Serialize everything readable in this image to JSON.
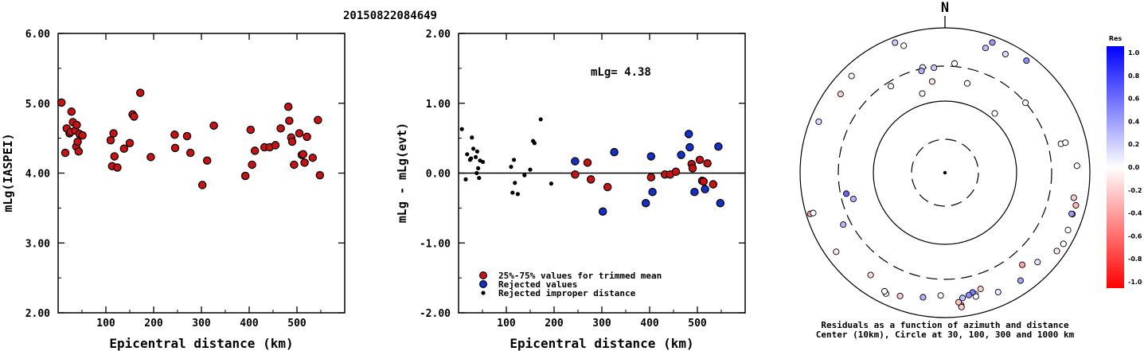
{
  "title": "20150822084649",
  "chart_data": [
    {
      "type": "scatter",
      "ylabel": "mLg(IASPEI)",
      "xlabel": "Epicentral distance (km)",
      "xlim": [
        0,
        600
      ],
      "ylim": [
        2.0,
        6.0
      ],
      "x_ticks": [
        "100",
        "200",
        "300",
        "400",
        "500"
      ],
      "y_ticks": [
        "2.00",
        "3.00",
        "4.00",
        "5.00",
        "6.00"
      ],
      "series": [
        {
          "color": "#d01010",
          "points": [
            [
              7,
              5.01
            ],
            [
              15,
              4.29
            ],
            [
              18,
              4.64
            ],
            [
              24,
              4.57
            ],
            [
              26,
              4.59
            ],
            [
              28,
              4.88
            ],
            [
              31,
              4.73
            ],
            [
              36,
              4.61
            ],
            [
              38,
              4.38
            ],
            [
              39,
              4.69
            ],
            [
              41,
              4.45
            ],
            [
              43,
              4.31
            ],
            [
              45,
              4.56
            ],
            [
              51,
              4.54
            ],
            [
              110,
              4.47
            ],
            [
              113,
              4.1
            ],
            [
              116,
              4.57
            ],
            [
              118,
              4.24
            ],
            [
              124,
              4.08
            ],
            [
              138,
              4.35
            ],
            [
              150,
              4.43
            ],
            [
              156,
              4.84
            ],
            [
              159,
              4.81
            ],
            [
              172,
              5.15
            ],
            [
              194,
              4.23
            ],
            [
              244,
              4.55
            ],
            [
              245,
              4.36
            ],
            [
              270,
              4.53
            ],
            [
              277,
              4.29
            ],
            [
              302,
              3.83
            ],
            [
              312,
              4.18
            ],
            [
              326,
              4.68
            ],
            [
              392,
              3.96
            ],
            [
              403,
              4.62
            ],
            [
              406,
              4.12
            ],
            [
              412,
              4.32
            ],
            [
              432,
              4.37
            ],
            [
              443,
              4.37
            ],
            [
              455,
              4.4
            ],
            [
              466,
              4.64
            ],
            [
              482,
              4.95
            ],
            [
              484,
              4.75
            ],
            [
              488,
              4.51
            ],
            [
              490,
              4.45
            ],
            [
              494,
              4.12
            ],
            [
              505,
              4.57
            ],
            [
              510,
              4.26
            ],
            [
              513,
              4.27
            ],
            [
              516,
              4.15
            ],
            [
              521,
              4.52
            ],
            [
              533,
              4.22
            ],
            [
              544,
              4.76
            ],
            [
              548,
              3.97
            ]
          ]
        }
      ]
    },
    {
      "type": "scatter",
      "ylabel": "mLg - mLg(evt)",
      "xlabel": "Epicentral distance (km)",
      "xlim": [
        0,
        600
      ],
      "ylim": [
        -2.0,
        2.0
      ],
      "x_ticks": [
        "100",
        "200",
        "300",
        "400",
        "500"
      ],
      "y_ticks": [
        "-2.00",
        "-1.00",
        "0.00",
        "1.00",
        "2.00"
      ],
      "annotation": "mLg= 4.38",
      "reference_line": 0.0,
      "legend": [
        {
          "label": "25%-75% values for trimmed mean",
          "color": "#d01010"
        },
        {
          "label": "Rejected values",
          "color": "#1030d0"
        },
        {
          "label": "Rejected improper distance",
          "color": "#000000"
        }
      ],
      "series": [
        {
          "name": "25%-75% values for trimmed mean",
          "color": "#d01010",
          "points": [
            [
              270,
              0.15
            ],
            [
              277,
              -0.09
            ],
            [
              312,
              -0.2
            ],
            [
              403,
              -0.06
            ],
            [
              432,
              -0.02
            ],
            [
              443,
              -0.02
            ],
            [
              455,
              0.02
            ],
            [
              488,
              0.13
            ],
            [
              490,
              0.07
            ],
            [
              505,
              0.19
            ],
            [
              510,
              -0.11
            ],
            [
              513,
              -0.12
            ],
            [
              521,
              0.14
            ],
            [
              533,
              -0.16
            ],
            [
              244,
              -0.02
            ]
          ]
        },
        {
          "name": "Rejected values",
          "color": "#1030d0",
          "points": [
            [
              244,
              0.17
            ],
            [
              302,
              -0.55
            ],
            [
              326,
              0.3
            ],
            [
              392,
              -0.43
            ],
            [
              403,
              0.24
            ],
            [
              406,
              -0.27
            ],
            [
              466,
              0.26
            ],
            [
              482,
              0.56
            ],
            [
              484,
              0.37
            ],
            [
              494,
              -0.27
            ],
            [
              516,
              -0.23
            ],
            [
              544,
              0.38
            ],
            [
              548,
              -0.43
            ]
          ]
        },
        {
          "name": "Rejected improper distance",
          "color": "#000000",
          "points": [
            [
              7,
              0.63
            ],
            [
              15,
              -0.09
            ],
            [
              18,
              0.27
            ],
            [
              24,
              0.19
            ],
            [
              26,
              0.21
            ],
            [
              28,
              0.51
            ],
            [
              31,
              0.35
            ],
            [
              36,
              0.23
            ],
            [
              38,
              0.0
            ],
            [
              39,
              0.31
            ],
            [
              41,
              0.07
            ],
            [
              43,
              -0.07
            ],
            [
              45,
              0.18
            ],
            [
              51,
              0.16
            ],
            [
              110,
              0.09
            ],
            [
              113,
              -0.28
            ],
            [
              116,
              0.19
            ],
            [
              118,
              -0.14
            ],
            [
              124,
              -0.3
            ],
            [
              138,
              -0.03
            ],
            [
              150,
              0.05
            ],
            [
              156,
              0.46
            ],
            [
              159,
              0.43
            ],
            [
              172,
              0.77
            ],
            [
              194,
              -0.15
            ]
          ]
        }
      ]
    },
    {
      "type": "scatter",
      "title": "N",
      "caption_line1": "Residuals as a function of azimuth and distance",
      "caption_line2": "Center (10km), Circle at 30, 100, 300 and 1000 km",
      "colorbar_title": "Res",
      "colorbar_ticks": [
        "1.0",
        "0.8",
        "0.6",
        "0.4",
        "0.2",
        "0.0",
        "-0.2",
        "-0.4",
        "-0.6",
        "-0.8",
        "-1.0"
      ],
      "rings_km": [
        30,
        100,
        300,
        1000
      ],
      "points": [
        [
          339,
          840,
          0.2
        ],
        [
          342,
          700,
          0.0
        ],
        [
          20,
          820,
          0.4
        ],
        [
          292,
          760,
          0.15
        ],
        [
          307,
          640,
          -0.2
        ],
        [
          316,
          720,
          0.05
        ],
        [
          18,
          650,
          0.25
        ],
        [
          27,
          690,
          0.15
        ],
        [
          36,
          820,
          0.45
        ],
        [
          5,
          330,
          0.0
        ],
        [
          354,
          290,
          0.2
        ],
        [
          348,
          310,
          0.1
        ],
        [
          347,
          280,
          0.3
        ],
        [
          328,
          260,
          0.05
        ],
        [
          352,
          190,
          -0.1
        ],
        [
          14,
          190,
          0.0
        ],
        [
          344,
          140,
          -0.05
        ],
        [
          40,
          120,
          0.0
        ],
        [
          49,
          300,
          -0.05
        ],
        [
          76,
          450,
          0.0
        ],
        [
          76,
          520,
          0.0
        ],
        [
          87,
          670,
          0.0
        ],
        [
          101,
          650,
          -0.2
        ],
        [
          104,
          730,
          -0.3
        ],
        [
          108,
          710,
          -0.1
        ],
        [
          108,
          690,
          0.4
        ],
        [
          115,
          750,
          0.0
        ],
        [
          121,
          810,
          0.0
        ],
        [
          125,
          770,
          -0.1
        ],
        [
          134,
          600,
          0.1
        ],
        [
          140,
          460,
          -0.35
        ],
        [
          145,
          660,
          0.35
        ],
        [
          156,
          640,
          0.1
        ],
        [
          163,
          480,
          -0.2
        ],
        [
          166,
          540,
          -0.1
        ],
        [
          166,
          580,
          0.0
        ],
        [
          167,
          500,
          0.5
        ],
        [
          169,
          530,
          0.45
        ],
        [
          172,
          560,
          0.25
        ],
        [
          173,
          700,
          -0.4
        ],
        [
          174,
          630,
          -0.25
        ],
        [
          173,
          740,
          -0.2
        ],
        [
          182,
          500,
          -0.05
        ],
        [
          190,
          560,
          0.3
        ],
        [
          200,
          650,
          -0.2
        ],
        [
          206,
          720,
          0.0
        ],
        [
          207,
          690,
          0.0
        ],
        [
          216,
          560,
          -0.15
        ],
        [
          234,
          720,
          -0.1
        ],
        [
          253,
          880,
          -0.35
        ],
        [
          243,
          380,
          0.3
        ],
        [
          254,
          210,
          0.3
        ],
        [
          258,
          250,
          0.6
        ],
        [
          253,
          800,
          0.0
        ]
      ]
    }
  ]
}
